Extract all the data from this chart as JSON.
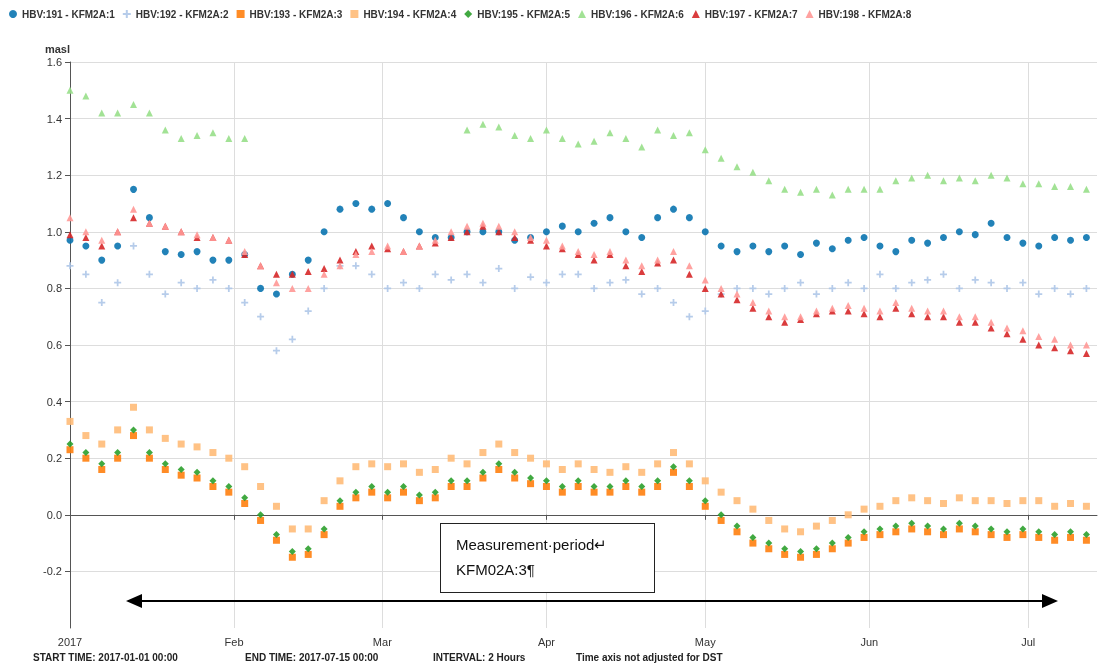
{
  "chart_data": {
    "type": "scatter",
    "ylabel": "masl",
    "x": [
      "2017-01-01",
      "2017-01-04",
      "2017-01-07",
      "2017-01-10",
      "2017-01-13",
      "2017-01-16",
      "2017-01-19",
      "2017-01-22",
      "2017-01-25",
      "2017-01-28",
      "2017-01-31",
      "2017-02-03",
      "2017-02-06",
      "2017-02-09",
      "2017-02-12",
      "2017-02-15",
      "2017-02-18",
      "2017-02-21",
      "2017-02-24",
      "2017-02-27",
      "2017-03-02",
      "2017-03-05",
      "2017-03-08",
      "2017-03-11",
      "2017-03-14",
      "2017-03-17",
      "2017-03-20",
      "2017-03-23",
      "2017-03-26",
      "2017-03-29",
      "2017-04-01",
      "2017-04-04",
      "2017-04-07",
      "2017-04-10",
      "2017-04-13",
      "2017-04-16",
      "2017-04-19",
      "2017-04-22",
      "2017-04-25",
      "2017-04-28",
      "2017-05-01",
      "2017-05-04",
      "2017-05-07",
      "2017-05-10",
      "2017-05-13",
      "2017-05-16",
      "2017-05-19",
      "2017-05-22",
      "2017-05-25",
      "2017-05-28",
      "2017-05-31",
      "2017-06-03",
      "2017-06-06",
      "2017-06-09",
      "2017-06-12",
      "2017-06-15",
      "2017-06-18",
      "2017-06-21",
      "2017-06-24",
      "2017-06-27",
      "2017-06-30",
      "2017-07-03",
      "2017-07-06",
      "2017-07-09",
      "2017-07-12"
    ],
    "series": [
      {
        "name": "HBV:191 - KFM2A:1",
        "color": "#0a74b0",
        "marker": "circle",
        "values": [
          0.97,
          0.95,
          0.9,
          0.95,
          1.15,
          1.05,
          0.93,
          0.92,
          0.93,
          0.9,
          0.9,
          0.92,
          0.8,
          0.78,
          0.85,
          0.9,
          1.0,
          1.08,
          1.1,
          1.08,
          1.1,
          1.05,
          1.0,
          0.98,
          0.98,
          1.0,
          1.0,
          1.0,
          0.97,
          0.98,
          1.0,
          1.02,
          1.0,
          1.03,
          1.05,
          1.0,
          0.98,
          1.05,
          1.08,
          1.05,
          1.0,
          0.95,
          0.93,
          0.95,
          0.93,
          0.95,
          0.92,
          0.96,
          0.94,
          0.97,
          0.98,
          0.95,
          0.93,
          0.97,
          0.96,
          0.98,
          1.0,
          0.99,
          1.03,
          0.98,
          0.96,
          0.95,
          0.98,
          0.97,
          0.98
        ]
      },
      {
        "name": "HBV:192 - KFM2A:2",
        "color": "#aec7e8",
        "marker": "cross",
        "values": [
          0.88,
          0.85,
          0.75,
          0.82,
          0.95,
          0.85,
          0.78,
          0.82,
          0.8,
          0.83,
          0.8,
          0.75,
          0.7,
          0.58,
          0.62,
          0.72,
          0.8,
          0.88,
          0.88,
          0.85,
          0.8,
          0.82,
          0.8,
          0.85,
          0.83,
          0.85,
          0.82,
          0.87,
          0.8,
          0.84,
          0.82,
          0.85,
          0.85,
          0.8,
          0.82,
          0.83,
          0.78,
          0.8,
          0.75,
          0.7,
          0.72,
          0.78,
          0.8,
          0.8,
          0.78,
          0.8,
          0.82,
          0.78,
          0.8,
          0.82,
          0.8,
          0.85,
          0.8,
          0.82,
          0.83,
          0.85,
          0.8,
          0.83,
          0.82,
          0.8,
          0.82,
          0.78,
          0.8,
          0.78,
          0.8
        ]
      },
      {
        "name": "HBV:193 - KFM2A:3",
        "color": "#ff7f0e",
        "marker": "square",
        "values": [
          0.23,
          0.2,
          0.16,
          0.2,
          0.28,
          0.2,
          0.16,
          0.14,
          0.13,
          0.1,
          0.08,
          0.04,
          -0.02,
          -0.09,
          -0.15,
          -0.14,
          -0.07,
          0.03,
          0.06,
          0.08,
          0.06,
          0.08,
          0.05,
          0.06,
          0.1,
          0.1,
          0.13,
          0.16,
          0.13,
          0.11,
          0.1,
          0.08,
          0.1,
          0.08,
          0.08,
          0.1,
          0.08,
          0.1,
          0.15,
          0.1,
          0.03,
          -0.02,
          -0.06,
          -0.1,
          -0.12,
          -0.14,
          -0.15,
          -0.14,
          -0.12,
          -0.1,
          -0.08,
          -0.07,
          -0.06,
          -0.05,
          -0.06,
          -0.07,
          -0.05,
          -0.06,
          -0.07,
          -0.08,
          -0.07,
          -0.08,
          -0.09,
          -0.08,
          -0.09
        ]
      },
      {
        "name": "HBV:194 - KFM2A:4",
        "color": "#ffbb78",
        "marker": "square",
        "values": [
          0.33,
          0.28,
          0.25,
          0.3,
          0.38,
          0.3,
          0.27,
          0.25,
          0.24,
          0.22,
          0.2,
          0.17,
          0.1,
          0.03,
          -0.05,
          -0.05,
          0.05,
          0.12,
          0.17,
          0.18,
          0.17,
          0.18,
          0.15,
          0.16,
          0.2,
          0.18,
          0.22,
          0.25,
          0.22,
          0.2,
          0.18,
          0.16,
          0.18,
          0.16,
          0.15,
          0.17,
          0.15,
          0.18,
          0.22,
          0.18,
          0.12,
          0.08,
          0.05,
          0.02,
          -0.02,
          -0.05,
          -0.06,
          -0.04,
          -0.02,
          0.0,
          0.02,
          0.03,
          0.05,
          0.06,
          0.05,
          0.04,
          0.06,
          0.05,
          0.05,
          0.04,
          0.05,
          0.05,
          0.03,
          0.04,
          0.03
        ]
      },
      {
        "name": "HBV:195 - KFM2A:5",
        "color": "#2ca02c",
        "marker": "diamond",
        "values": [
          0.25,
          0.22,
          0.18,
          0.22,
          0.3,
          0.22,
          0.18,
          0.16,
          0.15,
          0.12,
          0.1,
          0.06,
          0.0,
          -0.07,
          -0.13,
          -0.12,
          -0.05,
          0.05,
          0.08,
          0.1,
          0.08,
          0.1,
          0.07,
          0.08,
          0.12,
          0.12,
          0.15,
          0.18,
          0.15,
          0.13,
          0.12,
          0.1,
          0.12,
          0.1,
          0.1,
          0.12,
          0.1,
          0.12,
          0.17,
          0.12,
          0.05,
          0.0,
          -0.04,
          -0.08,
          -0.1,
          -0.12,
          -0.13,
          -0.12,
          -0.1,
          -0.08,
          -0.06,
          -0.05,
          -0.04,
          -0.03,
          -0.04,
          -0.05,
          -0.03,
          -0.04,
          -0.05,
          -0.06,
          -0.05,
          -0.06,
          -0.07,
          -0.06,
          -0.07
        ]
      },
      {
        "name": "HBV:196 - KFM2A:6",
        "color": "#98df8a",
        "marker": "triangle",
        "values": [
          1.5,
          1.48,
          1.42,
          1.42,
          1.45,
          1.42,
          1.36,
          1.33,
          1.34,
          1.35,
          1.33,
          1.33,
          null,
          null,
          null,
          null,
          null,
          null,
          null,
          null,
          null,
          null,
          null,
          null,
          null,
          1.36,
          1.38,
          1.37,
          1.34,
          1.33,
          1.36,
          1.33,
          1.31,
          1.32,
          1.35,
          1.33,
          1.3,
          1.36,
          1.34,
          1.35,
          1.29,
          1.26,
          1.23,
          1.21,
          1.18,
          1.15,
          1.14,
          1.15,
          1.13,
          1.15,
          1.15,
          1.15,
          1.18,
          1.19,
          1.2,
          1.18,
          1.19,
          1.18,
          1.2,
          1.19,
          1.17,
          1.17,
          1.16,
          1.16,
          1.15
        ]
      },
      {
        "name": "HBV:197 - KFM2A:7",
        "color": "#d62728",
        "marker": "triangle",
        "values": [
          0.99,
          0.98,
          0.95,
          1.0,
          1.05,
          1.03,
          1.02,
          1.0,
          0.98,
          0.98,
          0.97,
          0.92,
          0.88,
          0.85,
          0.85,
          0.86,
          0.87,
          0.9,
          0.93,
          0.95,
          0.94,
          0.93,
          0.95,
          0.96,
          0.98,
          1.0,
          1.02,
          1.0,
          0.98,
          0.97,
          0.95,
          0.94,
          0.92,
          0.9,
          0.92,
          0.88,
          0.86,
          0.89,
          0.9,
          0.85,
          0.8,
          0.78,
          0.76,
          0.73,
          0.7,
          0.68,
          0.69,
          0.71,
          0.72,
          0.72,
          0.71,
          0.7,
          0.73,
          0.71,
          0.7,
          0.7,
          0.68,
          0.68,
          0.66,
          0.64,
          0.62,
          0.6,
          0.59,
          0.58,
          0.57
        ]
      },
      {
        "name": "HBV:198 - KFM2A:8",
        "color": "#ff9896",
        "marker": "triangle",
        "values": [
          1.05,
          1.0,
          0.97,
          1.0,
          1.08,
          1.03,
          1.02,
          1.0,
          0.99,
          0.98,
          0.97,
          0.93,
          0.88,
          0.82,
          0.8,
          0.8,
          0.85,
          0.88,
          0.92,
          0.93,
          0.95,
          0.93,
          0.95,
          0.97,
          1.0,
          1.02,
          1.03,
          1.02,
          1.0,
          0.98,
          0.97,
          0.95,
          0.93,
          0.92,
          0.93,
          0.9,
          0.88,
          0.9,
          0.93,
          0.88,
          0.83,
          0.8,
          0.78,
          0.75,
          0.72,
          0.7,
          0.7,
          0.72,
          0.73,
          0.74,
          0.73,
          0.72,
          0.75,
          0.73,
          0.72,
          0.72,
          0.7,
          0.7,
          0.68,
          0.66,
          0.65,
          0.63,
          0.62,
          0.6,
          0.6
        ]
      }
    ],
    "xlim": [
      "2017-01-01",
      "2017-07-14"
    ],
    "xticks": [
      {
        "value": "2017-01-01",
        "label": "2017"
      },
      {
        "value": "2017-02-01",
        "label": "Feb"
      },
      {
        "value": "2017-03-01",
        "label": "Mar"
      },
      {
        "value": "2017-04-01",
        "label": "Apr"
      },
      {
        "value": "2017-05-01",
        "label": "May"
      },
      {
        "value": "2017-06-01",
        "label": "Jun"
      },
      {
        "value": "2017-07-01",
        "label": "Jul"
      }
    ],
    "ylim": [
      -0.4,
      1.6
    ],
    "yticks": [
      -0.2,
      {
        "value": 0,
        "label": "0.0"
      },
      0.2,
      0.4,
      0.6,
      0.8,
      {
        "value": 1,
        "label": "1.0"
      },
      1.2,
      1.4,
      1.6
    ],
    "grid": true,
    "legend": "top left",
    "annotations": [
      "Measurement·period↵\nKFM02A:3¶",
      "START TIME: 2017-01-01 00:00",
      "END TIME: 2017-07-15 00:00",
      "INTERVAL: 2 Hours",
      "Time axis not adjusted for DST"
    ]
  }
}
